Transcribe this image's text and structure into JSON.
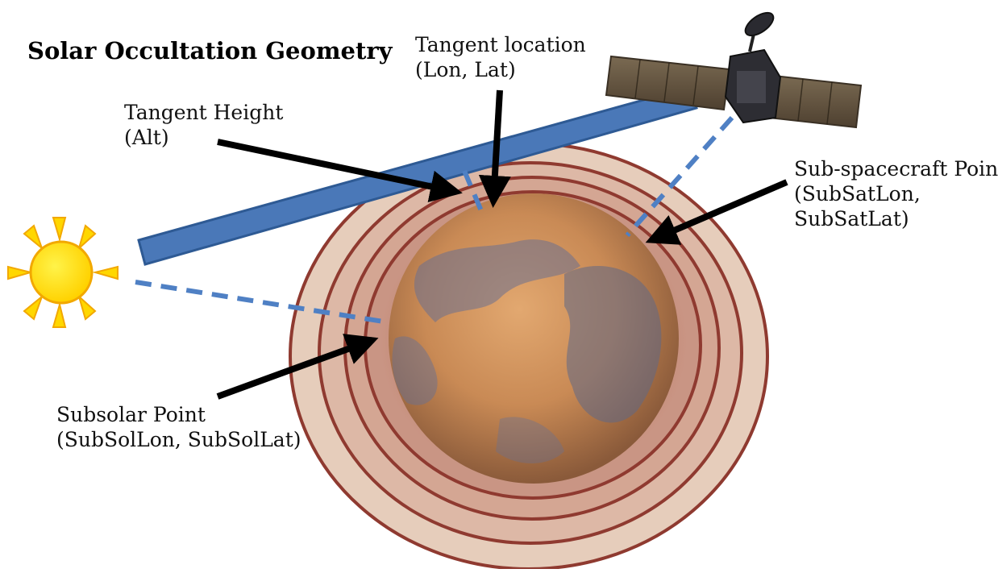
{
  "title": "Solar Occultation Geometry",
  "labels": {
    "tangent_height": [
      "Tangent Height",
      "(Alt)"
    ],
    "tangent_location": [
      "Tangent location",
      "(Lon, Lat)"
    ],
    "sub_spacecraft": [
      "Sub-spacecraft Point",
      "(SubSatLon,",
      "SubSatLat)"
    ],
    "subsolar": [
      "Subsolar Point",
      "(SubSolLon, SubSolLat)"
    ]
  },
  "icons": [
    "sun-icon",
    "spacecraft-icon",
    "planet-mars"
  ],
  "colors": {
    "beam": "#4a78b8",
    "dashed_line": "#4f80c4",
    "atmosphere_outline": "#8f3a30",
    "sun": "#ffd700",
    "planet": "#c98a55"
  }
}
